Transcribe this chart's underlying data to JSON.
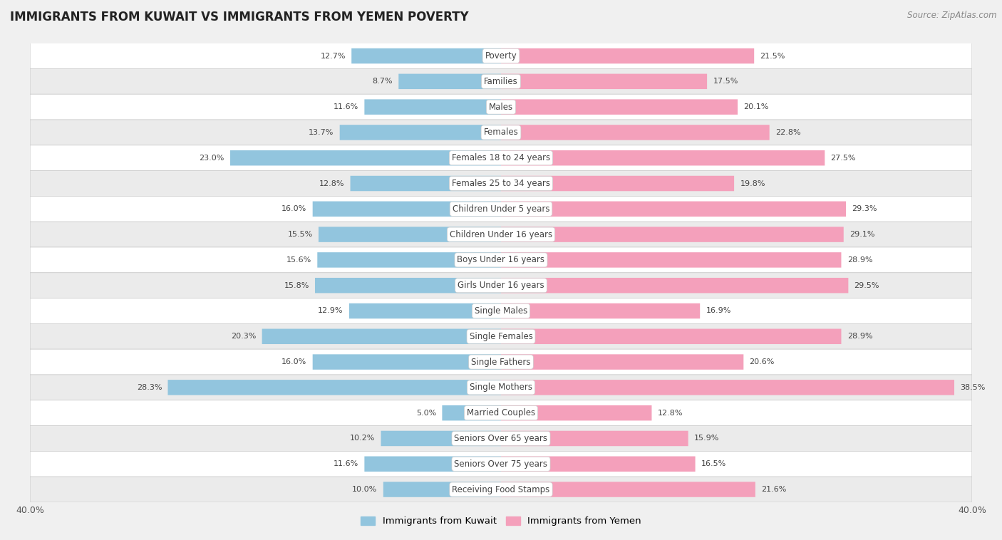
{
  "title": "IMMIGRANTS FROM KUWAIT VS IMMIGRANTS FROM YEMEN POVERTY",
  "source": "Source: ZipAtlas.com",
  "categories": [
    "Poverty",
    "Families",
    "Males",
    "Females",
    "Females 18 to 24 years",
    "Females 25 to 34 years",
    "Children Under 5 years",
    "Children Under 16 years",
    "Boys Under 16 years",
    "Girls Under 16 years",
    "Single Males",
    "Single Females",
    "Single Fathers",
    "Single Mothers",
    "Married Couples",
    "Seniors Over 65 years",
    "Seniors Over 75 years",
    "Receiving Food Stamps"
  ],
  "kuwait_values": [
    12.7,
    8.7,
    11.6,
    13.7,
    23.0,
    12.8,
    16.0,
    15.5,
    15.6,
    15.8,
    12.9,
    20.3,
    16.0,
    28.3,
    5.0,
    10.2,
    11.6,
    10.0
  ],
  "yemen_values": [
    21.5,
    17.5,
    20.1,
    22.8,
    27.5,
    19.8,
    29.3,
    29.1,
    28.9,
    29.5,
    16.9,
    28.9,
    20.6,
    38.5,
    12.8,
    15.9,
    16.5,
    21.6
  ],
  "kuwait_color": "#92c5de",
  "yemen_color": "#f4a0bb",
  "background_color": "#f0f0f0",
  "row_color_light": "#ffffff",
  "row_color_dark": "#ebebeb",
  "xlim": 40.0,
  "bar_height": 0.6,
  "legend_kuwait": "Immigrants from Kuwait",
  "legend_yemen": "Immigrants from Yemen",
  "font_size_labels": 8.5,
  "font_size_values": 8.0,
  "font_size_title": 12,
  "font_size_source": 8.5,
  "font_size_axis": 9
}
